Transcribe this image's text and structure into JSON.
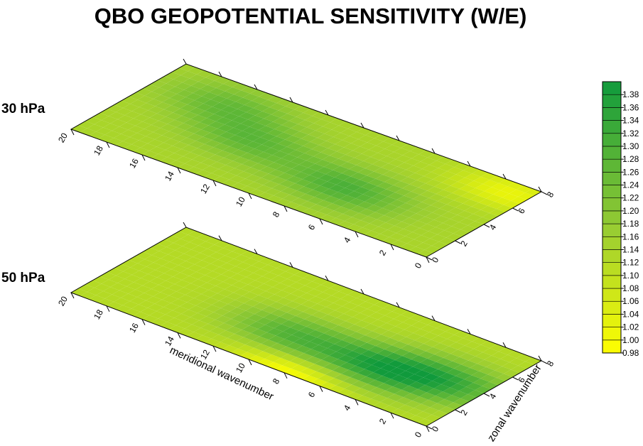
{
  "title": "QBO GEOPOTENTIAL SENSITIVITY (W/E)",
  "panels": [
    {
      "label": "30 hPa"
    },
    {
      "label": "50 hPa"
    }
  ],
  "axes": {
    "meridional_label": "meridional wavenumber",
    "zonal_label": "zonal wavenumber",
    "meridional_ticks": [
      "0",
      "2",
      "4",
      "6",
      "8",
      "10",
      "12",
      "14",
      "16",
      "18",
      "20"
    ],
    "zonal_ticks": [
      "0",
      "2",
      "4",
      "6",
      "8"
    ]
  },
  "colorbar": {
    "ticks": [
      "0.98",
      "1.00",
      "1.02",
      "1.04",
      "1.06",
      "1.08",
      "1.10",
      "1.12",
      "1.14",
      "1.16",
      "1.18",
      "1.20",
      "1.22",
      "1.24",
      "1.26",
      "1.28",
      "1.30",
      "1.32",
      "1.34",
      "1.36",
      "1.38"
    ],
    "min": 0.98,
    "max": 1.4,
    "low_color": "#ffff00",
    "mid_color": "#9acd32",
    "high_color": "#109a3c"
  },
  "chart_data": [
    {
      "type": "heatmap",
      "title": "30 hPa",
      "xlabel": "meridional wavenumber",
      "ylabel": "zonal wavenumber",
      "xlim": [
        0,
        20
      ],
      "ylim": [
        0,
        8
      ],
      "peaks": [
        {
          "m": 7,
          "z": 3,
          "value": 1.3
        },
        {
          "m": 13,
          "z": 4,
          "value": 1.26
        },
        {
          "m": 16,
          "z": 6,
          "value": 1.25
        }
      ],
      "minimum": {
        "m": 1,
        "z": 7,
        "value": 1.02
      }
    },
    {
      "type": "heatmap",
      "title": "50 hPa",
      "xlabel": "meridional wavenumber",
      "ylabel": "zonal wavenumber",
      "xlim": [
        0,
        20
      ],
      "ylim": [
        0,
        8
      ],
      "peaks": [
        {
          "m": 5,
          "z": 3,
          "value": 1.34
        },
        {
          "m": 10,
          "z": 3,
          "value": 1.28
        },
        {
          "m": 2,
          "z": 4,
          "value": 1.3
        }
      ],
      "minimum": {
        "m": 8,
        "z": 0,
        "value": 0.98
      }
    }
  ]
}
